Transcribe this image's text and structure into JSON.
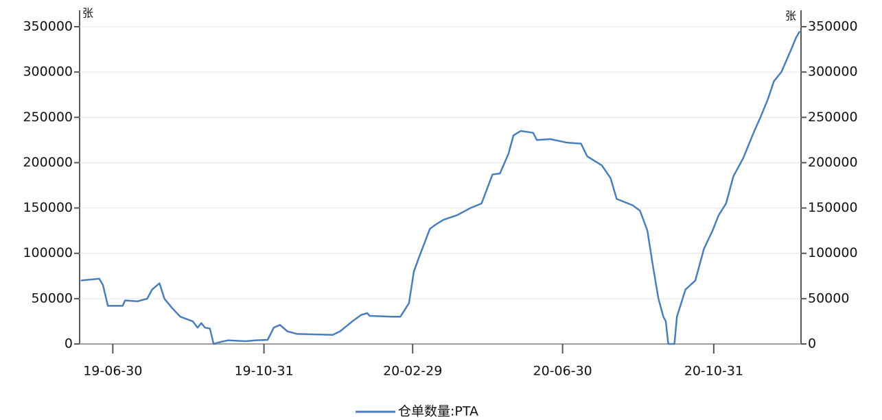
{
  "chart_data": {
    "type": "line",
    "y_label": "张",
    "y2_label": "张",
    "xlim": [
      "19-06-03",
      "21-01-10"
    ],
    "xticks": [
      "19-06-30",
      "19-10-31",
      "20-02-29",
      "20-06-30",
      "20-10-31"
    ],
    "ylim": [
      0,
      350000
    ],
    "yticks": [
      0,
      50000,
      100000,
      150000,
      200000,
      250000,
      300000,
      350000
    ],
    "y2lim": [
      0,
      350000
    ],
    "y2ticks": [
      0,
      50000,
      100000,
      150000,
      200000,
      250000,
      300000,
      350000
    ],
    "grid": true,
    "x": [
      "19-06-04",
      "19-06-19",
      "19-06-22",
      "19-06-26",
      "19-07-08",
      "19-07-10",
      "19-07-20",
      "19-07-28",
      "19-08-01",
      "19-08-07",
      "19-08-11",
      "19-08-17",
      "19-08-24",
      "19-09-03",
      "19-09-07",
      "19-09-10",
      "19-09-13",
      "19-09-17",
      "19-09-20",
      "19-09-25",
      "19-10-02",
      "19-10-16",
      "19-10-24",
      "19-11-03",
      "19-11-08",
      "19-11-13",
      "19-11-19",
      "19-11-27",
      "19-12-26",
      "20-01-01",
      "20-01-11",
      "20-01-18",
      "20-01-23",
      "20-01-25",
      "20-02-12",
      "20-02-19",
      "20-02-26",
      "20-03-01",
      "20-03-05",
      "20-03-14",
      "20-03-18",
      "20-03-25",
      "20-04-05",
      "20-04-16",
      "20-04-25",
      "20-05-04",
      "20-05-10",
      "20-05-17",
      "20-05-21",
      "20-05-27",
      "20-06-06",
      "20-06-09",
      "20-06-20",
      "20-07-04",
      "20-07-15",
      "20-07-20",
      "20-08-01",
      "20-08-08",
      "20-08-13",
      "20-08-26",
      "20-09-01",
      "20-09-07",
      "20-09-11",
      "20-09-16",
      "20-09-20",
      "20-09-22",
      "20-09-24",
      "20-09-29",
      "20-10-01",
      "20-10-08",
      "20-10-16",
      "20-10-23",
      "20-10-30",
      "20-11-04",
      "20-11-10",
      "20-11-16",
      "20-11-24",
      "20-12-03",
      "20-12-08",
      "20-12-14",
      "20-12-19",
      "20-12-25",
      "21-01-02",
      "21-01-06",
      "21-01-09"
    ],
    "series": [
      {
        "name": "仓单数量:PTA",
        "color": "#4a7ebb",
        "values": [
          70000,
          72000,
          65000,
          42000,
          42000,
          48000,
          47000,
          50000,
          60000,
          67000,
          50000,
          40000,
          30000,
          25000,
          18000,
          23000,
          18000,
          17000,
          0,
          2000,
          4000,
          3000,
          4000,
          4500,
          18000,
          21000,
          14000,
          11000,
          10000,
          14000,
          25000,
          32000,
          34000,
          31000,
          30000,
          30000,
          45000,
          80000,
          95000,
          127000,
          131000,
          137000,
          142000,
          150000,
          155000,
          187000,
          188000,
          210000,
          230000,
          235000,
          233000,
          225000,
          226000,
          222000,
          221000,
          207000,
          197000,
          183000,
          160000,
          153000,
          147000,
          125000,
          90000,
          50000,
          30000,
          25000,
          0,
          0,
          30000,
          60000,
          70000,
          105000,
          125000,
          142000,
          155000,
          185000,
          205000,
          235000,
          250000,
          270000,
          290000,
          300000,
          325000,
          338000,
          345000
        ]
      }
    ]
  }
}
